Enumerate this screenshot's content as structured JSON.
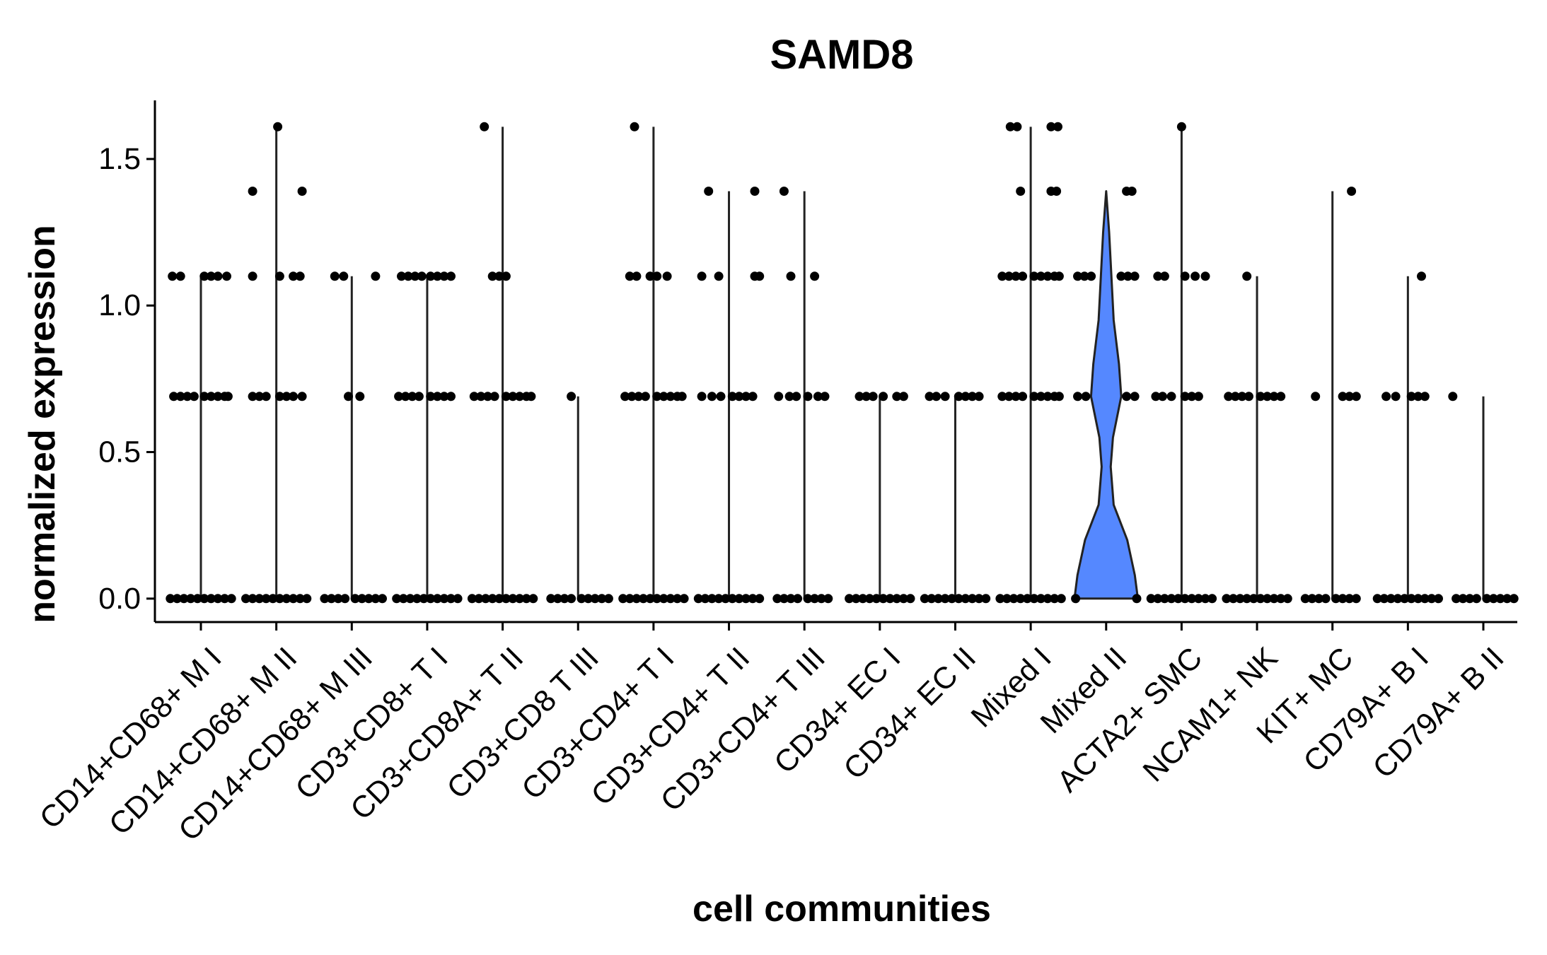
{
  "chart_data": {
    "type": "violin",
    "title": "SAMD8",
    "xlabel": "cell communities",
    "ylabel": "normalized expression",
    "ylim": [
      -0.08,
      1.7
    ],
    "yticks": [
      0.0,
      0.5,
      1.0,
      1.5
    ],
    "ytick_labels": [
      "0.0",
      "0.5",
      "1.0",
      "1.5"
    ],
    "grid": false,
    "legend": "none",
    "colors": {
      "violin_fill": "#5588ff",
      "point": "#000000",
      "axis": "#000000"
    },
    "categories": [
      "CD14+CD68+ M I",
      "CD14+CD68+ M II",
      "CD14+CD68+ M III",
      "CD3+CD8+ T I",
      "CD3+CD8A+ T II",
      "CD3+CD8 T III",
      "CD3+CD4+ T I",
      "CD3+CD4+ T II",
      "CD3+CD4+ T III",
      "CD34+ EC I",
      "CD34+ EC II",
      "Mixed I",
      "Mixed II",
      "ACTA2+ SMC",
      "NCAM1+ NK",
      "KIT+ MC",
      "CD79A+ B I",
      "CD79A+ B II"
    ],
    "series": [
      {
        "max": 1.1,
        "levels": [
          {
            "y": 0.0,
            "offsets": [
              -0.45,
              -0.35,
              -0.25,
              -0.15,
              -0.05,
              0.05,
              0.15,
              0.25,
              0.35,
              0.45
            ]
          },
          {
            "y": 0.69,
            "offsets": [
              -0.4,
              -0.3,
              -0.2,
              -0.1,
              0.05,
              0.15,
              0.25,
              0.35,
              0.4
            ]
          },
          {
            "y": 1.1,
            "offsets": [
              -0.42,
              -0.3,
              0.05,
              0.15,
              0.25,
              0.38
            ]
          }
        ]
      },
      {
        "max": 1.61,
        "levels": [
          {
            "y": 0.0,
            "offsets": [
              -0.45,
              -0.35,
              -0.25,
              -0.15,
              -0.05,
              0.05,
              0.15,
              0.25,
              0.35,
              0.45
            ]
          },
          {
            "y": 0.69,
            "offsets": [
              -0.35,
              -0.25,
              -0.15,
              0.05,
              0.15,
              0.25,
              0.38
            ]
          },
          {
            "y": 1.1,
            "offsets": [
              -0.35,
              0.05,
              0.25,
              0.35
            ]
          },
          {
            "y": 1.39,
            "offsets": [
              -0.35,
              0.38
            ]
          },
          {
            "y": 1.61,
            "offsets": [
              0.02
            ]
          }
        ]
      },
      {
        "max": 1.1,
        "levels": [
          {
            "y": 0.0,
            "offsets": [
              -0.4,
              -0.3,
              -0.2,
              -0.1,
              0.05,
              0.15,
              0.25,
              0.35,
              0.45
            ]
          },
          {
            "y": 0.69,
            "offsets": [
              -0.05,
              0.12
            ]
          },
          {
            "y": 1.1,
            "offsets": [
              -0.25,
              -0.12,
              0.35
            ]
          }
        ]
      },
      {
        "max": 1.1,
        "levels": [
          {
            "y": 0.0,
            "offsets": [
              -0.45,
              -0.35,
              -0.25,
              -0.15,
              -0.05,
              0.05,
              0.15,
              0.25,
              0.35,
              0.45
            ]
          },
          {
            "y": 0.69,
            "offsets": [
              -0.42,
              -0.32,
              -0.22,
              -0.12,
              0.05,
              0.15,
              0.25,
              0.35
            ]
          },
          {
            "y": 1.1,
            "offsets": [
              -0.38,
              -0.28,
              -0.18,
              -0.08,
              0.05,
              0.15,
              0.25,
              0.35
            ]
          }
        ]
      },
      {
        "max": 1.61,
        "levels": [
          {
            "y": 0.0,
            "offsets": [
              -0.45,
              -0.35,
              -0.25,
              -0.15,
              -0.05,
              0.05,
              0.15,
              0.25,
              0.35,
              0.45
            ]
          },
          {
            "y": 0.69,
            "offsets": [
              -0.42,
              -0.32,
              -0.22,
              -0.12,
              0.05,
              0.15,
              0.25,
              0.35,
              0.42
            ]
          },
          {
            "y": 1.1,
            "offsets": [
              -0.15,
              -0.05,
              0.05
            ]
          },
          {
            "y": 1.61,
            "offsets": [
              -0.27
            ]
          }
        ]
      },
      {
        "max": 0.69,
        "levels": [
          {
            "y": 0.0,
            "offsets": [
              -0.4,
              -0.3,
              -0.2,
              -0.1,
              0.05,
              0.15,
              0.25,
              0.35,
              0.45
            ]
          },
          {
            "y": 0.69,
            "offsets": [
              -0.1
            ]
          }
        ]
      },
      {
        "max": 1.61,
        "levels": [
          {
            "y": 0.0,
            "offsets": [
              -0.45,
              -0.35,
              -0.25,
              -0.15,
              -0.05,
              0.05,
              0.15,
              0.25,
              0.35,
              0.45
            ]
          },
          {
            "y": 0.69,
            "offsets": [
              -0.42,
              -0.32,
              -0.22,
              -0.12,
              0.05,
              0.15,
              0.25,
              0.35,
              0.42
            ]
          },
          {
            "y": 1.1,
            "offsets": [
              -0.35,
              -0.25,
              -0.05,
              0.05,
              0.2
            ]
          },
          {
            "y": 1.61,
            "offsets": [
              -0.28
            ]
          }
        ]
      },
      {
        "max": 1.39,
        "levels": [
          {
            "y": 0.0,
            "offsets": [
              -0.45,
              -0.35,
              -0.25,
              -0.15,
              -0.05,
              0.05,
              0.15,
              0.25,
              0.35,
              0.45
            ]
          },
          {
            "y": 0.69,
            "offsets": [
              -0.4,
              -0.25,
              -0.12,
              0.05,
              0.15,
              0.25,
              0.35
            ]
          },
          {
            "y": 1.1,
            "offsets": [
              -0.4,
              -0.15,
              0.38,
              0.45
            ]
          },
          {
            "y": 1.39,
            "offsets": [
              -0.3,
              0.38
            ]
          }
        ]
      },
      {
        "max": 1.39,
        "levels": [
          {
            "y": 0.0,
            "offsets": [
              -0.4,
              -0.3,
              -0.2,
              -0.1,
              0.05,
              0.15,
              0.25,
              0.35
            ]
          },
          {
            "y": 0.69,
            "offsets": [
              -0.38,
              -0.22,
              -0.12,
              0.05,
              0.2,
              0.3
            ]
          },
          {
            "y": 1.1,
            "offsets": [
              -0.2,
              0.15
            ]
          },
          {
            "y": 1.39,
            "offsets": [
              -0.3
            ]
          }
        ]
      },
      {
        "max": 0.69,
        "levels": [
          {
            "y": 0.0,
            "offsets": [
              -0.45,
              -0.35,
              -0.25,
              -0.15,
              -0.05,
              0.05,
              0.15,
              0.25,
              0.35,
              0.45
            ]
          },
          {
            "y": 0.69,
            "offsets": [
              -0.3,
              -0.2,
              -0.1,
              0.05,
              0.25,
              0.35
            ]
          }
        ]
      },
      {
        "max": 0.69,
        "levels": [
          {
            "y": 0.0,
            "offsets": [
              -0.45,
              -0.35,
              -0.25,
              -0.15,
              -0.05,
              0.05,
              0.15,
              0.25,
              0.35,
              0.45
            ]
          },
          {
            "y": 0.69,
            "offsets": [
              -0.38,
              -0.28,
              -0.15,
              0.05,
              0.15,
              0.25,
              0.35
            ]
          }
        ]
      },
      {
        "max": 1.61,
        "levels": [
          {
            "y": 0.0,
            "offsets": [
              -0.45,
              -0.35,
              -0.25,
              -0.15,
              -0.05,
              0.05,
              0.15,
              0.25,
              0.35,
              0.45
            ]
          },
          {
            "y": 0.69,
            "offsets": [
              -0.42,
              -0.32,
              -0.22,
              -0.12,
              0.05,
              0.15,
              0.25,
              0.35,
              0.42
            ]
          },
          {
            "y": 1.1,
            "offsets": [
              -0.42,
              -0.32,
              -0.22,
              -0.12,
              0.05,
              0.15,
              0.25,
              0.35,
              0.42
            ]
          },
          {
            "y": 1.39,
            "offsets": [
              -0.15,
              0.3,
              0.38
            ]
          },
          {
            "y": 1.61,
            "offsets": [
              -0.3,
              -0.2,
              0.3,
              0.4
            ]
          }
        ]
      },
      {
        "max": 1.39,
        "violin": [
          [
            0.0,
            0.42
          ],
          [
            0.08,
            0.38
          ],
          [
            0.2,
            0.28
          ],
          [
            0.32,
            0.1
          ],
          [
            0.45,
            0.06
          ],
          [
            0.55,
            0.09
          ],
          [
            0.69,
            0.2
          ],
          [
            0.8,
            0.17
          ],
          [
            0.95,
            0.1
          ],
          [
            1.1,
            0.07
          ],
          [
            1.25,
            0.04
          ],
          [
            1.39,
            0.0
          ]
        ],
        "levels": [
          {
            "y": 0.0,
            "offsets": [
              -0.45,
              0.45
            ]
          },
          {
            "y": 0.69,
            "offsets": [
              -0.42,
              -0.3,
              0.3,
              0.42
            ]
          },
          {
            "y": 1.1,
            "offsets": [
              -0.42,
              -0.32,
              -0.22,
              0.22,
              0.32,
              0.42
            ]
          },
          {
            "y": 1.39,
            "offsets": [
              0.3,
              0.38
            ]
          }
        ]
      },
      {
        "max": 1.61,
        "levels": [
          {
            "y": 0.0,
            "offsets": [
              -0.45,
              -0.35,
              -0.25,
              -0.15,
              -0.05,
              0.05,
              0.15,
              0.25,
              0.35,
              0.45
            ]
          },
          {
            "y": 0.69,
            "offsets": [
              -0.38,
              -0.28,
              -0.15,
              0.05,
              0.15,
              0.25
            ]
          },
          {
            "y": 1.1,
            "offsets": [
              -0.35,
              -0.25,
              0.05,
              0.2,
              0.35
            ]
          },
          {
            "y": 1.61,
            "offsets": [
              0.0
            ]
          }
        ]
      },
      {
        "max": 1.1,
        "levels": [
          {
            "y": 0.0,
            "offsets": [
              -0.45,
              -0.35,
              -0.25,
              -0.15,
              -0.05,
              0.05,
              0.15,
              0.25,
              0.35,
              0.45
            ]
          },
          {
            "y": 0.69,
            "offsets": [
              -0.42,
              -0.32,
              -0.22,
              -0.12,
              0.05,
              0.15,
              0.25,
              0.35
            ]
          },
          {
            "y": 1.1,
            "offsets": [
              -0.15
            ]
          }
        ]
      },
      {
        "max": 1.39,
        "levels": [
          {
            "y": 0.0,
            "offsets": [
              -0.4,
              -0.3,
              -0.2,
              -0.1,
              0.05,
              0.15,
              0.25,
              0.35
            ]
          },
          {
            "y": 0.69,
            "offsets": [
              -0.25,
              0.15,
              0.25,
              0.35
            ]
          },
          {
            "y": 1.39,
            "offsets": [
              0.28
            ]
          }
        ]
      },
      {
        "max": 1.1,
        "levels": [
          {
            "y": 0.0,
            "offsets": [
              -0.45,
              -0.35,
              -0.25,
              -0.15,
              -0.05,
              0.05,
              0.15,
              0.25,
              0.35,
              0.45
            ]
          },
          {
            "y": 0.69,
            "offsets": [
              -0.32,
              -0.18,
              0.05,
              0.15,
              0.25
            ]
          },
          {
            "y": 1.1,
            "offsets": [
              0.2
            ]
          }
        ]
      },
      {
        "max": 0.69,
        "levels": [
          {
            "y": 0.0,
            "offsets": [
              -0.4,
              -0.3,
              -0.2,
              -0.1,
              0.05,
              0.15,
              0.25,
              0.35,
              0.45
            ]
          },
          {
            "y": 0.69,
            "offsets": [
              -0.45
            ]
          }
        ]
      }
    ]
  }
}
